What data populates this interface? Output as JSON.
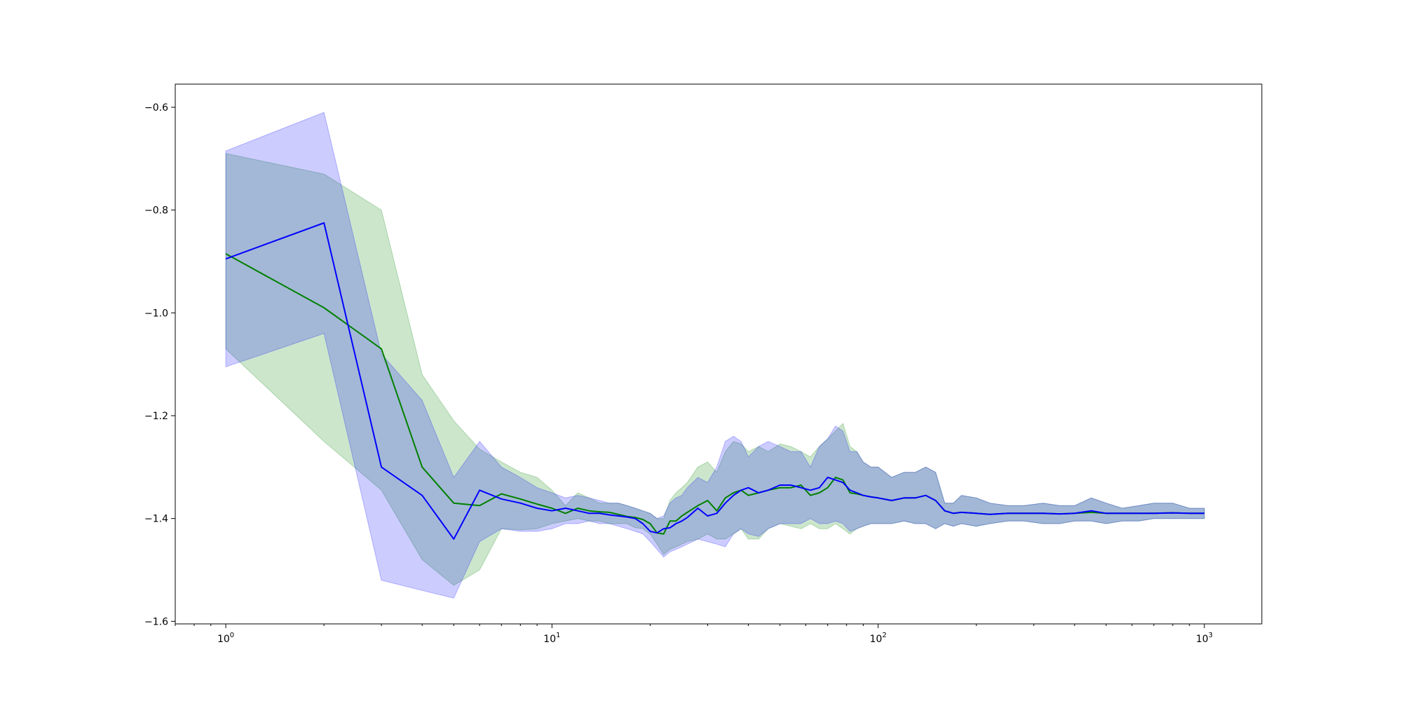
{
  "chart_data": {
    "type": "line",
    "title": "",
    "xlabel": "",
    "ylabel": "",
    "x_scale": "log",
    "xlim": [
      0.7,
      1500
    ],
    "ylim": [
      -1.605,
      -0.555
    ],
    "grid": false,
    "legend": "none",
    "x_ticks": [
      {
        "value": 1,
        "base": "10",
        "exp": "0"
      },
      {
        "value": 10,
        "base": "10",
        "exp": "1"
      },
      {
        "value": 100,
        "base": "10",
        "exp": "2"
      },
      {
        "value": 1000,
        "base": "10",
        "exp": "3"
      }
    ],
    "y_ticks": [
      {
        "value": -1.6,
        "label": "−1.6"
      },
      {
        "value": -1.4,
        "label": "−1.4"
      },
      {
        "value": -1.2,
        "label": "−1.2"
      },
      {
        "value": -1.0,
        "label": "−1.0"
      },
      {
        "value": -0.8,
        "label": "−0.8"
      },
      {
        "value": -0.6,
        "label": "−0.6"
      }
    ],
    "series": [
      {
        "color": "#008000",
        "band_color": "#008000",
        "band_opacity": 0.2,
        "x": [
          1,
          2,
          3,
          4,
          5,
          6,
          7,
          8,
          9,
          10,
          11,
          12,
          13,
          14,
          15,
          16,
          17,
          18,
          19,
          20,
          21,
          22,
          23,
          24,
          25,
          26,
          28,
          30,
          32,
          34,
          36,
          38,
          40,
          43,
          46,
          50,
          54,
          58,
          62,
          66,
          70,
          74,
          78,
          82,
          86,
          90,
          95,
          100,
          110,
          120,
          130,
          140,
          150,
          160,
          170,
          180,
          200,
          220,
          250,
          280,
          320,
          360,
          400,
          450,
          500,
          560,
          630,
          700,
          800,
          900,
          1000
        ],
        "y": [
          -0.885,
          -0.99,
          -1.07,
          -1.3,
          -1.37,
          -1.375,
          -1.352,
          -1.362,
          -1.372,
          -1.38,
          -1.39,
          -1.38,
          -1.385,
          -1.387,
          -1.388,
          -1.392,
          -1.396,
          -1.398,
          -1.402,
          -1.41,
          -1.428,
          -1.43,
          -1.405,
          -1.405,
          -1.395,
          -1.388,
          -1.375,
          -1.365,
          -1.385,
          -1.36,
          -1.35,
          -1.345,
          -1.355,
          -1.35,
          -1.345,
          -1.34,
          -1.34,
          -1.335,
          -1.355,
          -1.35,
          -1.34,
          -1.32,
          -1.325,
          -1.35,
          -1.352,
          -1.355,
          -1.358,
          -1.36,
          -1.365,
          -1.36,
          -1.36,
          -1.355,
          -1.365,
          -1.385,
          -1.39,
          -1.388,
          -1.39,
          -1.392,
          -1.39,
          -1.39,
          -1.39,
          -1.391,
          -1.39,
          -1.388,
          -1.39,
          -1.39,
          -1.39,
          -1.39,
          -1.389,
          -1.39,
          -1.39
        ],
        "lower": [
          -1.07,
          -1.25,
          -1.345,
          -1.48,
          -1.53,
          -1.5,
          -1.42,
          -1.422,
          -1.42,
          -1.41,
          -1.405,
          -1.4,
          -1.405,
          -1.405,
          -1.41,
          -1.41,
          -1.41,
          -1.418,
          -1.42,
          -1.43,
          -1.45,
          -1.47,
          -1.46,
          -1.455,
          -1.45,
          -1.445,
          -1.44,
          -1.43,
          -1.44,
          -1.44,
          -1.43,
          -1.42,
          -1.44,
          -1.44,
          -1.42,
          -1.41,
          -1.415,
          -1.42,
          -1.41,
          -1.42,
          -1.42,
          -1.41,
          -1.42,
          -1.43,
          -1.42,
          -1.415,
          -1.41,
          -1.41,
          -1.41,
          -1.405,
          -1.41,
          -1.41,
          -1.42,
          -1.41,
          -1.415,
          -1.41,
          -1.415,
          -1.41,
          -1.405,
          -1.405,
          -1.41,
          -1.41,
          -1.405,
          -1.405,
          -1.41,
          -1.405,
          -1.405,
          -1.4,
          -1.4,
          -1.4,
          -1.4
        ],
        "upper": [
          -0.69,
          -0.73,
          -0.8,
          -1.12,
          -1.21,
          -1.265,
          -1.29,
          -1.31,
          -1.32,
          -1.345,
          -1.375,
          -1.35,
          -1.36,
          -1.37,
          -1.37,
          -1.37,
          -1.375,
          -1.38,
          -1.385,
          -1.39,
          -1.4,
          -1.4,
          -1.365,
          -1.35,
          -1.34,
          -1.33,
          -1.3,
          -1.29,
          -1.31,
          -1.27,
          -1.25,
          -1.255,
          -1.27,
          -1.26,
          -1.27,
          -1.255,
          -1.26,
          -1.27,
          -1.28,
          -1.26,
          -1.245,
          -1.23,
          -1.215,
          -1.26,
          -1.27,
          -1.29,
          -1.3,
          -1.3,
          -1.32,
          -1.31,
          -1.31,
          -1.3,
          -1.31,
          -1.37,
          -1.37,
          -1.355,
          -1.36,
          -1.37,
          -1.375,
          -1.375,
          -1.37,
          -1.375,
          -1.375,
          -1.36,
          -1.37,
          -1.38,
          -1.375,
          -1.37,
          -1.37,
          -1.38,
          -1.38
        ]
      },
      {
        "color": "#0000ff",
        "band_color": "#0000ff",
        "band_opacity": 0.2,
        "x": [
          1,
          2,
          3,
          4,
          5,
          6,
          7,
          8,
          9,
          10,
          11,
          12,
          13,
          14,
          15,
          16,
          17,
          18,
          19,
          20,
          21,
          22,
          23,
          24,
          25,
          26,
          28,
          30,
          32,
          34,
          36,
          38,
          40,
          43,
          46,
          50,
          54,
          58,
          62,
          66,
          70,
          74,
          78,
          82,
          86,
          90,
          95,
          100,
          110,
          120,
          130,
          140,
          150,
          160,
          170,
          180,
          200,
          220,
          250,
          280,
          320,
          360,
          400,
          450,
          500,
          560,
          630,
          700,
          800,
          900,
          1000
        ],
        "y": [
          -0.895,
          -0.825,
          -1.3,
          -1.355,
          -1.44,
          -1.345,
          -1.362,
          -1.37,
          -1.38,
          -1.385,
          -1.38,
          -1.385,
          -1.39,
          -1.39,
          -1.393,
          -1.395,
          -1.397,
          -1.4,
          -1.41,
          -1.425,
          -1.428,
          -1.42,
          -1.418,
          -1.41,
          -1.405,
          -1.398,
          -1.38,
          -1.395,
          -1.39,
          -1.37,
          -1.355,
          -1.345,
          -1.34,
          -1.35,
          -1.345,
          -1.335,
          -1.335,
          -1.34,
          -1.345,
          -1.34,
          -1.32,
          -1.325,
          -1.33,
          -1.345,
          -1.35,
          -1.355,
          -1.358,
          -1.36,
          -1.365,
          -1.36,
          -1.36,
          -1.355,
          -1.365,
          -1.385,
          -1.39,
          -1.388,
          -1.39,
          -1.392,
          -1.39,
          -1.39,
          -1.39,
          -1.391,
          -1.39,
          -1.385,
          -1.39,
          -1.39,
          -1.39,
          -1.39,
          -1.389,
          -1.39,
          -1.39
        ],
        "lower": [
          -1.105,
          -1.04,
          -1.52,
          -1.54,
          -1.555,
          -1.445,
          -1.42,
          -1.425,
          -1.425,
          -1.42,
          -1.41,
          -1.41,
          -1.405,
          -1.41,
          -1.41,
          -1.415,
          -1.42,
          -1.425,
          -1.43,
          -1.445,
          -1.46,
          -1.475,
          -1.465,
          -1.46,
          -1.455,
          -1.45,
          -1.44,
          -1.445,
          -1.45,
          -1.455,
          -1.43,
          -1.42,
          -1.43,
          -1.435,
          -1.42,
          -1.41,
          -1.41,
          -1.41,
          -1.4,
          -1.41,
          -1.41,
          -1.405,
          -1.41,
          -1.425,
          -1.42,
          -1.415,
          -1.41,
          -1.41,
          -1.41,
          -1.405,
          -1.41,
          -1.41,
          -1.42,
          -1.41,
          -1.415,
          -1.41,
          -1.415,
          -1.41,
          -1.405,
          -1.405,
          -1.41,
          -1.41,
          -1.405,
          -1.405,
          -1.41,
          -1.405,
          -1.405,
          -1.4,
          -1.4,
          -1.4,
          -1.4
        ],
        "upper": [
          -0.685,
          -0.61,
          -1.08,
          -1.17,
          -1.32,
          -1.25,
          -1.3,
          -1.32,
          -1.34,
          -1.35,
          -1.36,
          -1.355,
          -1.36,
          -1.365,
          -1.37,
          -1.37,
          -1.375,
          -1.38,
          -1.385,
          -1.39,
          -1.4,
          -1.395,
          -1.37,
          -1.36,
          -1.355,
          -1.34,
          -1.32,
          -1.33,
          -1.3,
          -1.25,
          -1.24,
          -1.25,
          -1.28,
          -1.26,
          -1.25,
          -1.26,
          -1.27,
          -1.27,
          -1.3,
          -1.26,
          -1.245,
          -1.22,
          -1.23,
          -1.27,
          -1.27,
          -1.29,
          -1.3,
          -1.3,
          -1.32,
          -1.31,
          -1.31,
          -1.3,
          -1.31,
          -1.37,
          -1.37,
          -1.355,
          -1.36,
          -1.37,
          -1.375,
          -1.375,
          -1.37,
          -1.375,
          -1.375,
          -1.36,
          -1.37,
          -1.38,
          -1.375,
          -1.37,
          -1.37,
          -1.38,
          -1.38
        ]
      }
    ]
  }
}
